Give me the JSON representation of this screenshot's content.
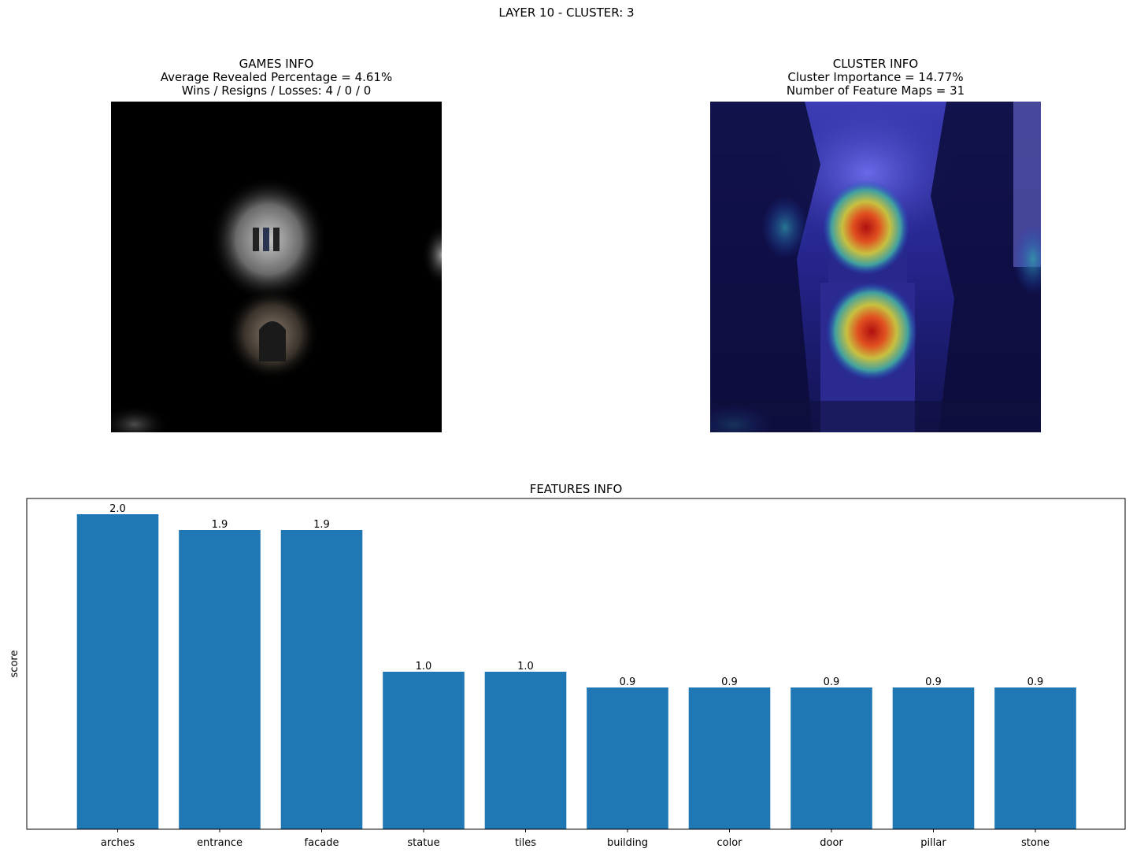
{
  "suptitle": "LAYER 10 - CLUSTER: 3",
  "games_info": {
    "title": "GAMES INFO",
    "line1": "Average Revealed Percentage = 4.61%",
    "line2": "Wins / Resigns / Losses: 4 / 0 / 0"
  },
  "cluster_info": {
    "title": "CLUSTER INFO",
    "line1": "Cluster Importance = 14.77%",
    "line2": "Number of Feature Maps = 31"
  },
  "chart_data": {
    "type": "bar",
    "title": "FEATURES INFO",
    "xlabel": "",
    "ylabel": "score",
    "categories": [
      "arches",
      "entrance",
      "facade",
      "statue",
      "tiles",
      "building",
      "color",
      "door",
      "pillar",
      "stone"
    ],
    "values": [
      2.0,
      1.9,
      1.9,
      1.0,
      1.0,
      0.9,
      0.9,
      0.9,
      0.9,
      0.9
    ],
    "value_labels": [
      "2.0",
      "1.9",
      "1.9",
      "1.0",
      "1.0",
      "0.9",
      "0.9",
      "0.9",
      "0.9",
      "0.9"
    ],
    "ylim": [
      0,
      2.1
    ],
    "bar_color": "#1f77b4",
    "grid": false
  }
}
